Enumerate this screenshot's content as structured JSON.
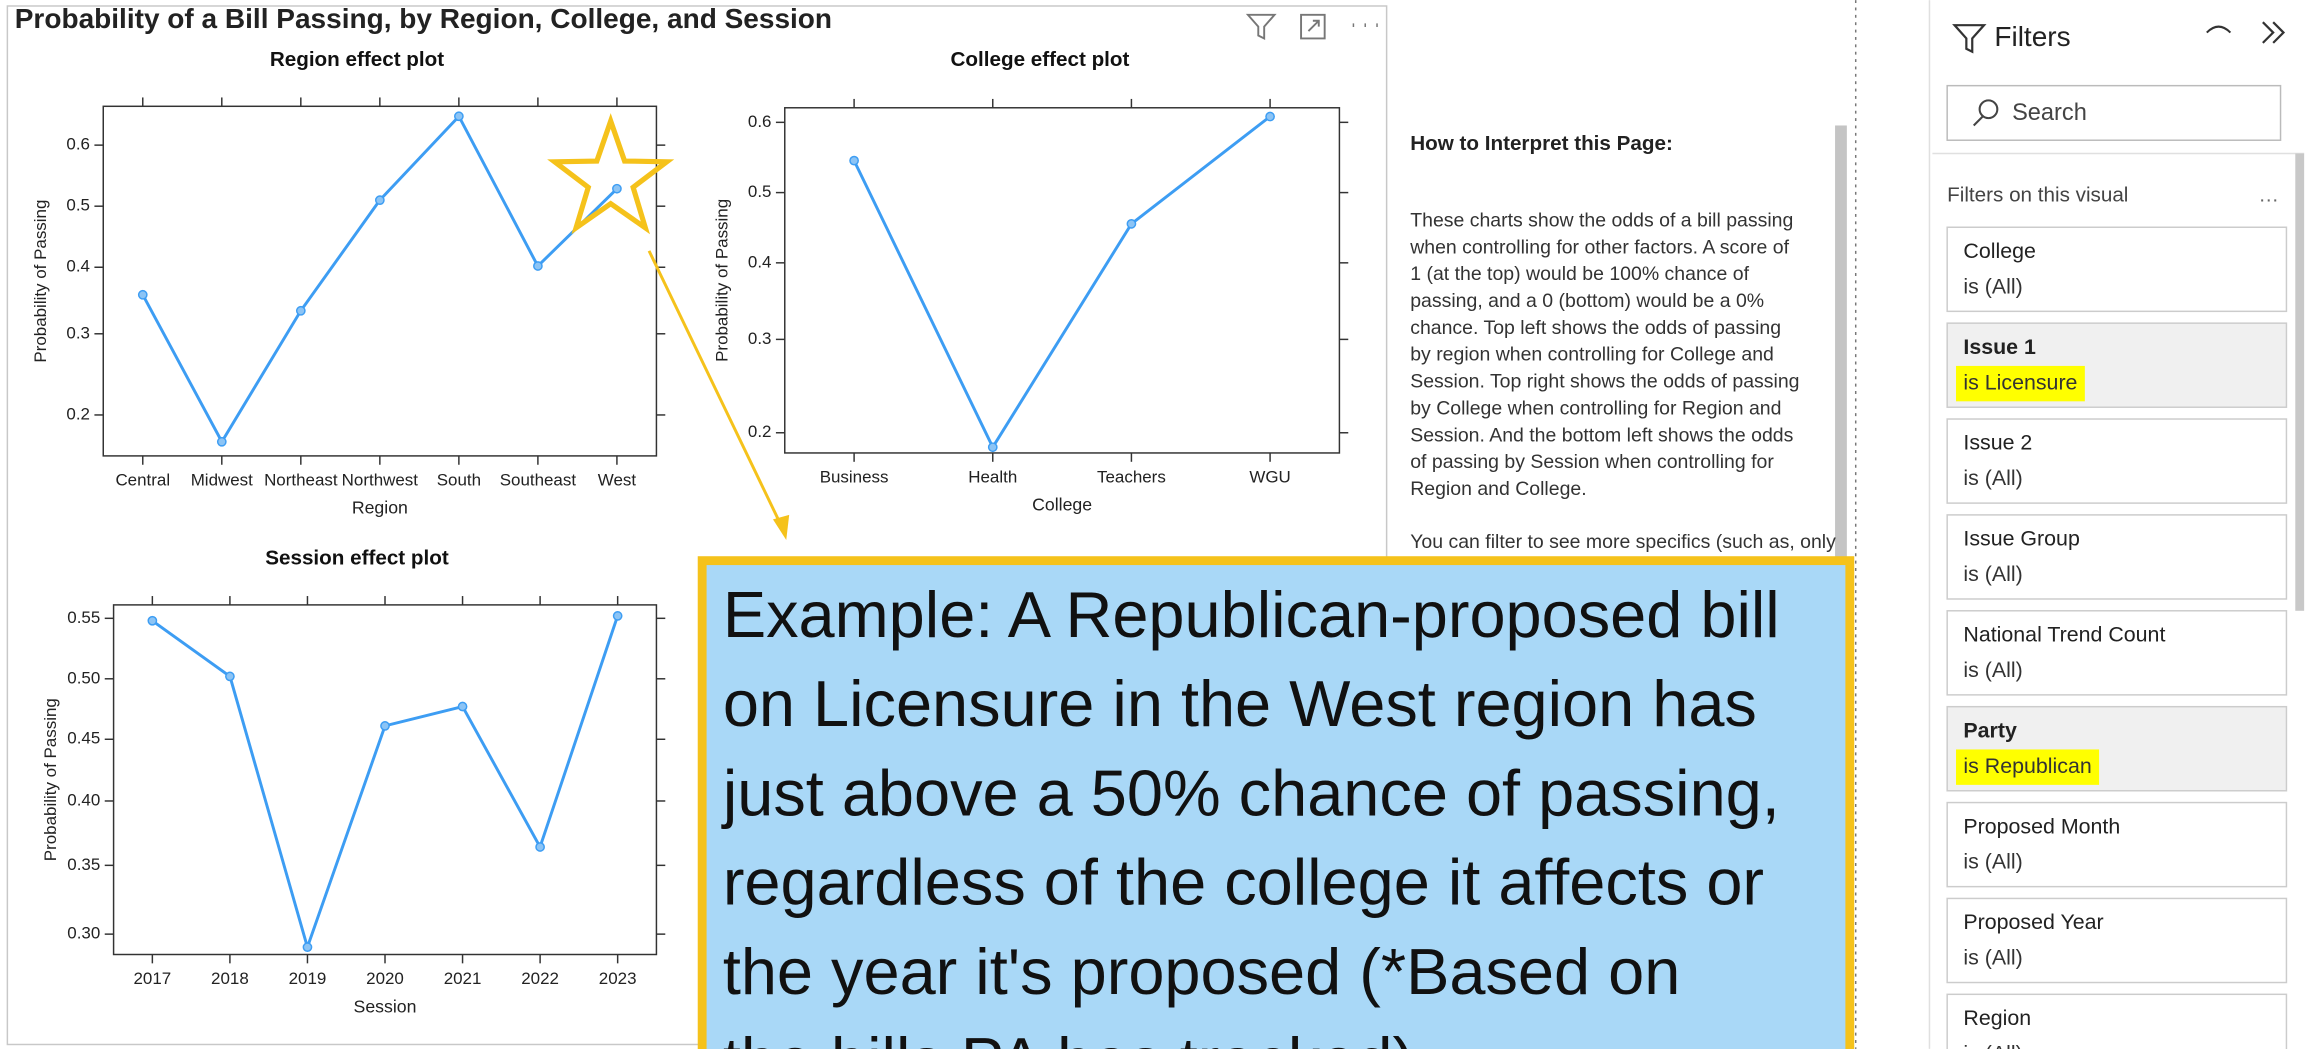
{
  "report_title": "Probability of a Bill Passing, by Region, College, and Session",
  "chart_data": [
    {
      "type": "line",
      "title": "Region effect plot",
      "x_label": "Region",
      "y_label": "Probability of Passing",
      "categories": [
        "Central",
        "Midwest",
        "Northeast",
        "Northwest",
        "South",
        "Southeast",
        "West"
      ],
      "values": [
        0.357,
        0.173,
        0.333,
        0.51,
        0.645,
        0.402,
        0.529
      ],
      "color": "#3d9df3",
      "yscale": "logit",
      "ylim": [
        0.16,
        0.66
      ],
      "yticks": [
        0.2,
        0.3,
        0.4,
        0.5,
        0.6
      ]
    },
    {
      "type": "line",
      "title": "College effect plot",
      "x_label": "College",
      "y_label": "Probability of Passing",
      "categories": [
        "Business",
        "Health",
        "Teachers",
        "WGU"
      ],
      "values": [
        0.546,
        0.187,
        0.455,
        0.608
      ],
      "color": "#3d9df3",
      "yscale": "logit",
      "ylim": [
        0.182,
        0.62
      ],
      "yticks": [
        0.2,
        0.3,
        0.4,
        0.5,
        0.6
      ]
    },
    {
      "type": "line",
      "title": "Session effect plot",
      "x_label": "Session",
      "y_label": "Probability of Passing",
      "categories": [
        "2017",
        "2018",
        "2019",
        "2020",
        "2021",
        "2022",
        "2023"
      ],
      "values": [
        0.548,
        0.502,
        0.291,
        0.461,
        0.477,
        0.364,
        0.552
      ],
      "color": "#3d9df3",
      "yscale": "logit",
      "ylim": [
        0.286,
        0.561
      ],
      "yticks": [
        {
          "value": 0.3,
          "label": "0.30"
        },
        0.35,
        {
          "value": 0.4,
          "label": "0.40"
        },
        0.45,
        {
          "value": 0.5,
          "label": "0.50"
        },
        0.55
      ]
    }
  ],
  "help": {
    "heading": "How to Interpret this Page:",
    "lines": [
      "These charts show the odds of a bill passing",
      "when controlling for other factors. A score of",
      "1 (at the top) would be 100% chance of",
      "passing, and a 0 (bottom) would be a 0%",
      "chance. Top left shows the odds of passing",
      "by region when controlling for College and",
      "Session. Top right shows the odds of passing",
      "by College when controlling for Region and",
      "Session. And the bottom left shows the odds",
      "of passing by Session when controlling for",
      "Region and College."
    ],
    "lines2": [
      "You can filter to see more specifics (such as, only"
    ]
  },
  "callout": {
    "lines": [
      "Example: A Republican-proposed bill",
      "on Licensure in the West region has",
      "just above a 50% chance of passing,",
      "regardless of the college it affects or",
      "the year it's proposed (*Based on",
      "the bills PA has tracked)"
    ]
  },
  "filters": {
    "title": "Filters",
    "search": "Search",
    "section": "Filters on this visual",
    "items": [
      {
        "name": "College",
        "value": "is (All)",
        "highlighted": false
      },
      {
        "name": "Issue 1",
        "value": "is Licensure",
        "highlighted": true
      },
      {
        "name": "Issue 2",
        "value": "is (All)",
        "highlighted": false
      },
      {
        "name": "Issue Group",
        "value": "is (All)",
        "highlighted": false
      },
      {
        "name": "National Trend Count",
        "value": "is (All)",
        "highlighted": false
      },
      {
        "name": "Party",
        "value": "is Republican",
        "highlighted": true
      },
      {
        "name": "Proposed Month",
        "value": "is (All)",
        "highlighted": false
      },
      {
        "name": "Proposed Year",
        "value": "is (All)",
        "highlighted": false
      },
      {
        "name": "Region",
        "value": "is (All)",
        "highlighted": false
      }
    ]
  }
}
